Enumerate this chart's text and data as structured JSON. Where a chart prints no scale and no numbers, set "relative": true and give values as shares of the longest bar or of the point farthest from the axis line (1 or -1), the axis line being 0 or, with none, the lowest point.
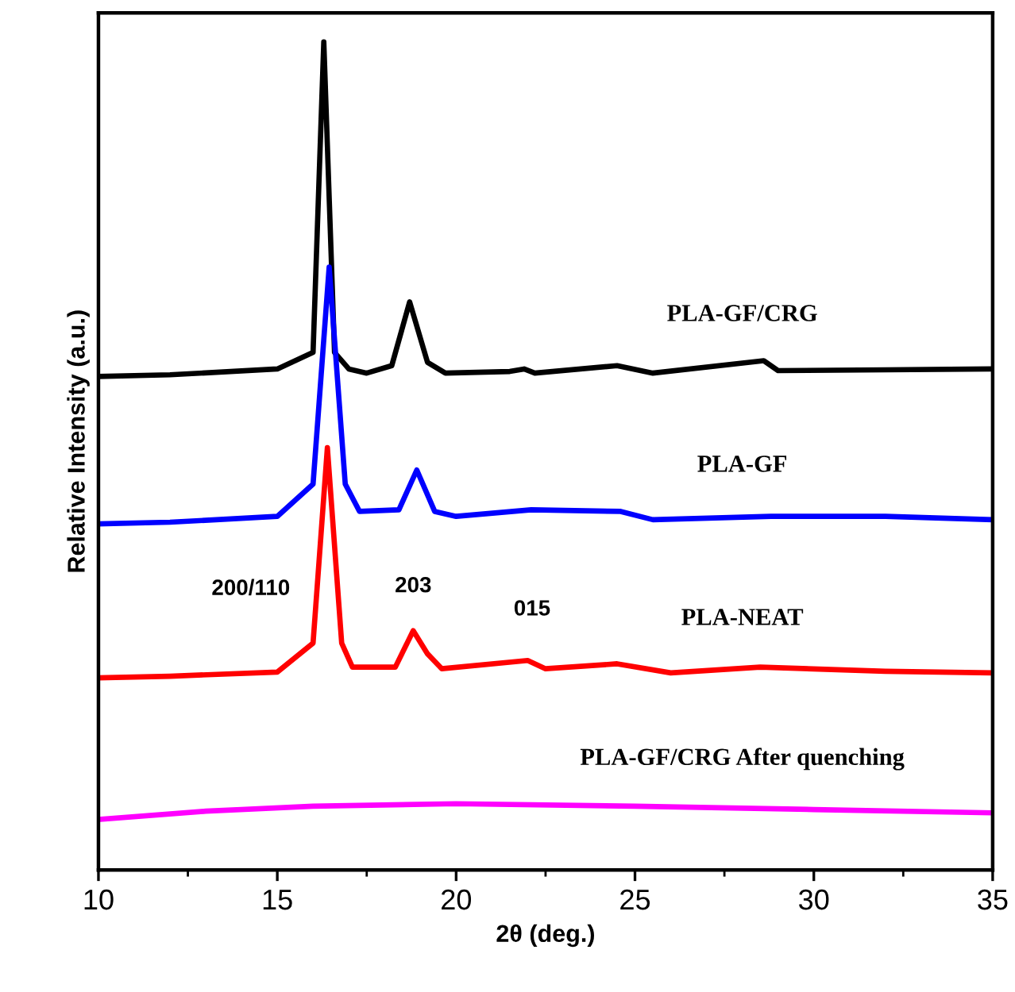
{
  "chart_data": {
    "type": "line",
    "relative": true,
    "xlabel": "2θ (deg.)",
    "ylabel": "Relative Intensity (a.u.)",
    "xlim": [
      10,
      35
    ],
    "xticks": [
      10,
      15,
      20,
      25,
      30,
      35
    ],
    "tick_labels": "x",
    "grid": false,
    "legend": false,
    "marker": "none",
    "line_style": "solid",
    "annotations": [
      {
        "text": "200/110",
        "x": 16.11,
        "y": 0.339
      },
      {
        "text": "203",
        "x": 18.8,
        "y": 0.289
      },
      {
        "text": "015",
        "x": 22.0,
        "y": 0.253
      }
    ],
    "series": [
      {
        "name": "PLA-GF/CRG",
        "color": "#000000",
        "x": [
          10,
          12,
          15,
          16.0,
          16.3,
          16.6,
          17,
          17.5,
          18.2,
          18.7,
          19.2,
          19.7,
          21.5,
          21.9,
          22.2,
          24.5,
          25.5,
          28.6,
          29,
          32,
          35
        ],
        "values": [
          0.596,
          0.598,
          0.605,
          0.625,
          1.0,
          0.625,
          0.605,
          0.6,
          0.609,
          0.686,
          0.613,
          0.6,
          0.602,
          0.605,
          0.6,
          0.609,
          0.6,
          0.615,
          0.603,
          0.604,
          0.605
        ]
      },
      {
        "name": "PLA-GF",
        "color": "#0000ff",
        "x": [
          10,
          12,
          15,
          16.0,
          16.45,
          16.9,
          17.3,
          18.4,
          18.9,
          19.4,
          20,
          22.1,
          24.6,
          25.5,
          28.8,
          32,
          35
        ],
        "values": [
          0.418,
          0.42,
          0.427,
          0.466,
          0.728,
          0.466,
          0.433,
          0.435,
          0.483,
          0.433,
          0.427,
          0.435,
          0.433,
          0.423,
          0.427,
          0.427,
          0.423
        ]
      },
      {
        "name": "PLA-NEAT",
        "color": "#ff0000",
        "x": [
          10,
          12,
          15,
          16.0,
          16.4,
          16.8,
          17.1,
          18.3,
          18.8,
          19.2,
          19.6,
          22.0,
          22.5,
          24.5,
          26,
          28.5,
          32,
          35
        ],
        "values": [
          0.232,
          0.234,
          0.239,
          0.274,
          0.51,
          0.274,
          0.245,
          0.245,
          0.289,
          0.261,
          0.243,
          0.253,
          0.243,
          0.249,
          0.238,
          0.245,
          0.24,
          0.238
        ]
      },
      {
        "name": "PLA-GF/CRG After quenching",
        "color": "#ff00ff",
        "x": [
          10,
          13,
          16,
          20,
          25,
          30,
          35
        ],
        "values": [
          0.061,
          0.071,
          0.077,
          0.08,
          0.077,
          0.073,
          0.069
        ]
      }
    ]
  }
}
